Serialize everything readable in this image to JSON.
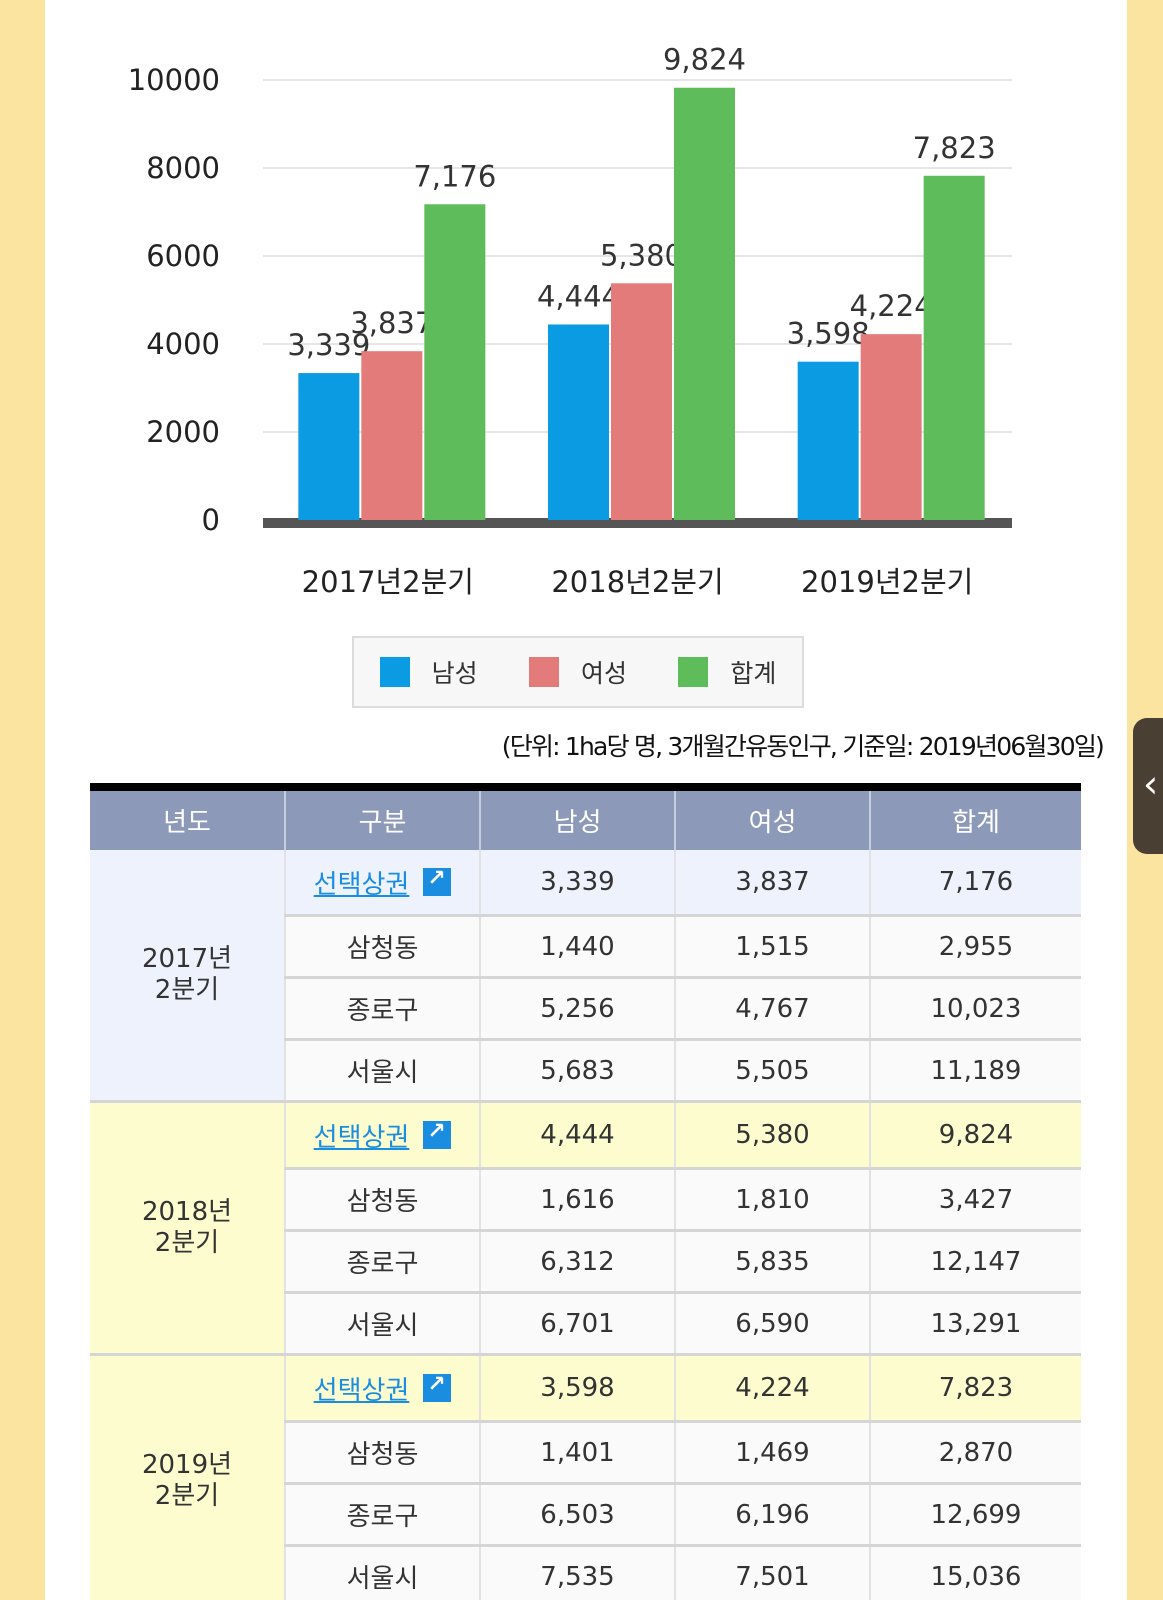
{
  "chart_data": {
    "type": "bar",
    "categories": [
      "2017년2분기",
      "2018년2분기",
      "2019년2분기"
    ],
    "series": [
      {
        "name": "남성",
        "values": [
          3339,
          4444,
          3598
        ],
        "labels": [
          "3,339",
          "4,444",
          "3,598"
        ],
        "color": "#0b9be3"
      },
      {
        "name": "여성",
        "values": [
          3837,
          5380,
          4224
        ],
        "labels": [
          "3,837",
          "5,380",
          "4,224"
        ],
        "color": "#e47b7b"
      },
      {
        "name": "합계",
        "values": [
          7176,
          9824,
          7823
        ],
        "labels": [
          "7,176",
          "9,824",
          "7,823"
        ],
        "color": "#5ebc5b"
      }
    ],
    "yticks": [
      "0",
      "2000",
      "4000",
      "6000",
      "8000",
      "10000"
    ],
    "ylim": [
      0,
      10000
    ],
    "grid": true,
    "legend": "bottom"
  },
  "legend": {
    "items": [
      {
        "label": "남성",
        "color": "#0b9be3"
      },
      {
        "label": "여성",
        "color": "#e47b7b"
      },
      {
        "label": "합계",
        "color": "#5ebc5b"
      }
    ]
  },
  "unit_note": "(단위: 1ha당 명, 3개월간유동인구, 기준일: 2019년06월30일)",
  "table": {
    "headers": [
      "년도",
      "구분",
      "남성",
      "여성",
      "합계"
    ],
    "groups": [
      {
        "year": "2017년",
        "quarter": "2분기",
        "rows": [
          {
            "area": "선택상권",
            "male": "3,339",
            "female": "3,837",
            "total": "7,176"
          },
          {
            "area": "삼청동",
            "male": "1,440",
            "female": "1,515",
            "total": "2,955"
          },
          {
            "area": "종로구",
            "male": "5,256",
            "female": "4,767",
            "total": "10,023"
          },
          {
            "area": "서울시",
            "male": "5,683",
            "female": "5,505",
            "total": "11,189"
          }
        ]
      },
      {
        "year": "2018년",
        "quarter": "2분기",
        "rows": [
          {
            "area": "선택상권",
            "male": "4,444",
            "female": "5,380",
            "total": "9,824"
          },
          {
            "area": "삼청동",
            "male": "1,616",
            "female": "1,810",
            "total": "3,427"
          },
          {
            "area": "종로구",
            "male": "6,312",
            "female": "5,835",
            "total": "12,147"
          },
          {
            "area": "서울시",
            "male": "6,701",
            "female": "6,590",
            "total": "13,291"
          }
        ]
      },
      {
        "year": "2019년",
        "quarter": "2분기",
        "rows": [
          {
            "area": "선택상권",
            "male": "3,598",
            "female": "4,224",
            "total": "7,823"
          },
          {
            "area": "삼청동",
            "male": "1,401",
            "female": "1,469",
            "total": "2,870"
          },
          {
            "area": "종로구",
            "male": "6,503",
            "female": "6,196",
            "total": "12,699"
          },
          {
            "area": "서울시",
            "male": "7,535",
            "female": "7,501",
            "total": "15,036"
          }
        ]
      }
    ]
  },
  "side_tab": {
    "icon": "chevron-left-icon",
    "glyph": "‹"
  }
}
